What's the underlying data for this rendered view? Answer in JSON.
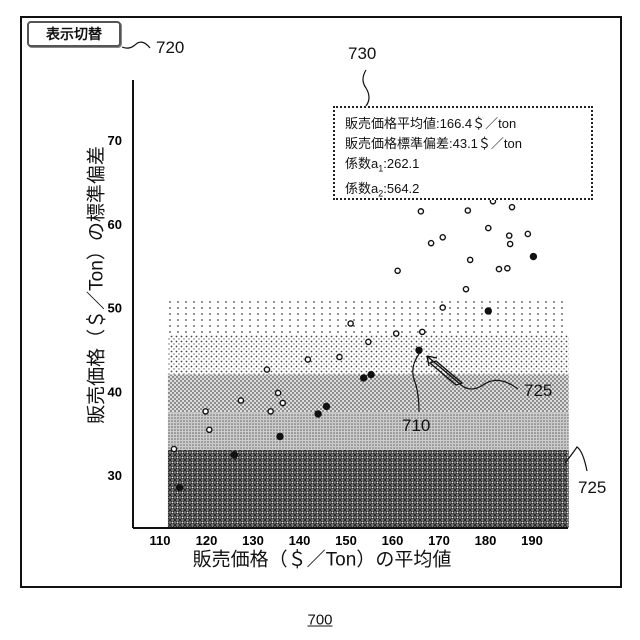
{
  "toggle_button": {
    "label": "表示切替",
    "ref": "720"
  },
  "info_box": {
    "ref": "730",
    "lines": [
      {
        "text": "販売価格平均値:166.4＄／ton"
      },
      {
        "text": "販売価格標準偏差:43.1＄／ton"
      },
      {
        "prefix": "係数a",
        "sub": "1",
        "value": ":262.1"
      },
      {
        "prefix": "係数a",
        "sub": "2",
        "value": ":564.2"
      }
    ]
  },
  "annotations": {
    "point_ref": "710",
    "arrow_ref": "725",
    "band_ref": "725"
  },
  "figure_number": "700",
  "chart_data": {
    "type": "scatter",
    "xlabel": "販売価格（＄／Ton）の平均値",
    "ylabel": "販売価格（＄／Ton）の標準偏差",
    "xlim": [
      104,
      197
    ],
    "ylim": [
      23.7,
      77
    ],
    "x_ticks": [
      "110",
      "120",
      "130",
      "140",
      "150",
      "160",
      "170",
      "180",
      "190"
    ],
    "y_ticks": [
      "30",
      "40",
      "50",
      "60",
      "70"
    ],
    "bands": [
      {
        "y": [
          23.7,
          33
        ],
        "pattern": "crosshatch"
      },
      {
        "y": [
          33,
          37.5
        ],
        "pattern": "fine"
      },
      {
        "y": [
          37.5,
          42
        ],
        "pattern": "dense-dots"
      },
      {
        "y": [
          42,
          46.7
        ],
        "pattern": "medium-dots"
      },
      {
        "y": [
          46.7,
          51.1
        ],
        "pattern": "sparse-dots"
      }
    ],
    "band_x": [
      111.7,
      197.9
    ],
    "series": [
      {
        "name": "open",
        "points": [
          [
            113.0,
            33.1
          ],
          [
            119.8,
            37.6
          ],
          [
            120.6,
            35.4
          ],
          [
            127.4,
            38.9
          ],
          [
            133.0,
            42.6
          ],
          [
            133.8,
            37.6
          ],
          [
            135.4,
            39.8
          ],
          [
            136.4,
            38.6
          ],
          [
            141.8,
            43.8
          ],
          [
            148.6,
            44.1
          ],
          [
            151.0,
            48.1
          ],
          [
            154.8,
            45.9
          ],
          [
            160.8,
            46.9
          ],
          [
            166.4,
            47.1
          ],
          [
            170.8,
            50.0
          ],
          [
            175.8,
            52.2
          ],
          [
            161.1,
            54.4
          ],
          [
            176.7,
            55.7
          ],
          [
            182.9,
            54.6
          ],
          [
            184.7,
            54.7
          ],
          [
            168.3,
            57.7
          ],
          [
            170.8,
            58.4
          ],
          [
            180.6,
            59.5
          ],
          [
            185.1,
            58.6
          ],
          [
            185.3,
            57.6
          ],
          [
            189.1,
            58.8
          ],
          [
            166.1,
            61.5
          ],
          [
            176.2,
            61.6
          ],
          [
            181.6,
            62.7
          ],
          [
            185.7,
            62.0
          ]
        ]
      },
      {
        "name": "filled",
        "points": [
          [
            114.2,
            28.5
          ],
          [
            126.0,
            32.4
          ],
          [
            135.8,
            34.6
          ],
          [
            144.0,
            37.3
          ],
          [
            145.8,
            38.2
          ],
          [
            153.8,
            41.6
          ],
          [
            155.4,
            42.0
          ],
          [
            180.6,
            49.6
          ],
          [
            190.3,
            56.1
          ]
        ]
      },
      {
        "name": "selected",
        "points": [
          [
            165.7,
            44.9
          ]
        ]
      }
    ]
  }
}
